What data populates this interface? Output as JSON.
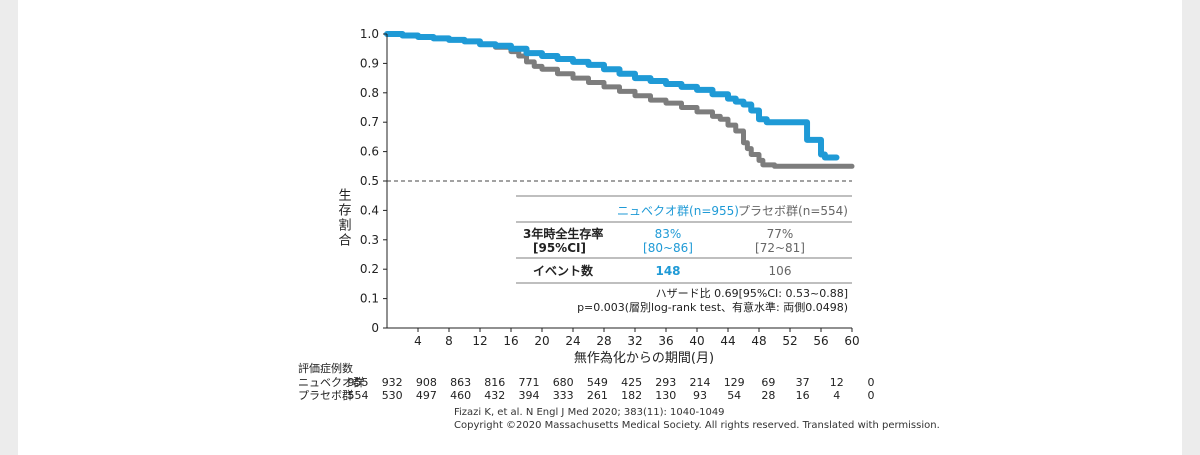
{
  "colors": {
    "nubeqa": "#1f9ad6",
    "placebo": "#7d7d7d",
    "axis": "#222222"
  },
  "chart_data": {
    "type": "line",
    "title": "",
    "xlabel": "無作為化からの期間(月)",
    "ylabel": "生存割合",
    "xlim": [
      0,
      60
    ],
    "ylim": [
      0,
      1.0
    ],
    "xticks": [
      4,
      8,
      12,
      16,
      20,
      24,
      28,
      32,
      36,
      40,
      44,
      48,
      52,
      56,
      60
    ],
    "yticks": [
      {
        "v": 0,
        "label": "0"
      },
      {
        "v": 0.1,
        "label": "0.1"
      },
      {
        "v": 0.2,
        "label": "0.2"
      },
      {
        "v": 0.3,
        "label": "0.3"
      },
      {
        "v": 0.4,
        "label": "0.4"
      },
      {
        "v": 0.5,
        "label": "0.5"
      },
      {
        "v": 0.6,
        "label": "0.6"
      },
      {
        "v": 0.7,
        "label": "0.7"
      },
      {
        "v": 0.8,
        "label": "0.8"
      },
      {
        "v": 0.9,
        "label": "0.9"
      },
      {
        "v": 1.0,
        "label": "1.0"
      }
    ],
    "reference_line": 0.5,
    "series": [
      {
        "name": "ニュベクオ群",
        "color": "#1f9ad6",
        "points": [
          [
            0,
            1.0
          ],
          [
            1,
            1.0
          ],
          [
            2,
            0.995
          ],
          [
            4,
            0.99
          ],
          [
            6,
            0.985
          ],
          [
            8,
            0.98
          ],
          [
            10,
            0.975
          ],
          [
            12,
            0.965
          ],
          [
            14,
            0.96
          ],
          [
            16,
            0.95
          ],
          [
            18,
            0.935
          ],
          [
            20,
            0.925
          ],
          [
            22,
            0.915
          ],
          [
            24,
            0.905
          ],
          [
            26,
            0.895
          ],
          [
            28,
            0.88
          ],
          [
            30,
            0.865
          ],
          [
            32,
            0.85
          ],
          [
            34,
            0.84
          ],
          [
            36,
            0.83
          ],
          [
            38,
            0.82
          ],
          [
            40,
            0.81
          ],
          [
            42,
            0.795
          ],
          [
            44,
            0.78
          ],
          [
            45,
            0.77
          ],
          [
            46,
            0.76
          ],
          [
            47,
            0.74
          ],
          [
            48,
            0.71
          ],
          [
            49,
            0.7
          ],
          [
            50,
            0.7
          ],
          [
            52,
            0.7
          ],
          [
            54,
            0.7
          ],
          [
            54.2,
            0.64
          ],
          [
            55,
            0.64
          ],
          [
            55.5,
            0.64
          ],
          [
            56,
            0.59
          ],
          [
            56.5,
            0.58
          ],
          [
            58,
            0.58
          ]
        ]
      },
      {
        "name": "プラセボ群",
        "color": "#7d7d7d",
        "points": [
          [
            0,
            1.0
          ],
          [
            1,
            1.0
          ],
          [
            2,
            0.995
          ],
          [
            4,
            0.99
          ],
          [
            6,
            0.985
          ],
          [
            8,
            0.98
          ],
          [
            10,
            0.975
          ],
          [
            12,
            0.965
          ],
          [
            14,
            0.955
          ],
          [
            16,
            0.94
          ],
          [
            17,
            0.925
          ],
          [
            18,
            0.905
          ],
          [
            19,
            0.89
          ],
          [
            20,
            0.88
          ],
          [
            22,
            0.865
          ],
          [
            24,
            0.85
          ],
          [
            26,
            0.835
          ],
          [
            28,
            0.82
          ],
          [
            30,
            0.805
          ],
          [
            32,
            0.79
          ],
          [
            34,
            0.775
          ],
          [
            36,
            0.765
          ],
          [
            38,
            0.75
          ],
          [
            40,
            0.735
          ],
          [
            42,
            0.72
          ],
          [
            43,
            0.71
          ],
          [
            44,
            0.69
          ],
          [
            45,
            0.67
          ],
          [
            46,
            0.63
          ],
          [
            46.5,
            0.61
          ],
          [
            47,
            0.59
          ],
          [
            48,
            0.57
          ],
          [
            48.5,
            0.555
          ],
          [
            50,
            0.55
          ],
          [
            52,
            0.55
          ],
          [
            54,
            0.55
          ],
          [
            56,
            0.55
          ],
          [
            58,
            0.55
          ],
          [
            60,
            0.55
          ]
        ]
      }
    ]
  },
  "table": {
    "head_nubeqa": "ニュベクオ群(n=955)",
    "head_placebo": "プラセボ群(n=554)",
    "row1_label_1": "3年時全生存率",
    "row1_label_2": "[95%CI]",
    "row1_nubeqa_1": "83%",
    "row1_nubeqa_2": "[80~86]",
    "row1_placebo_1": "77%",
    "row1_placebo_2": "[72~81]",
    "row2_label": "イベント数",
    "row2_nubeqa": "148",
    "row2_placebo": "106",
    "note1": "ハザード比 0.69[95%CI: 0.53~0.88]",
    "note2": "p=0.003(層別log-rank test、有意水準: 両側0.0498)"
  },
  "risk": {
    "title": "評価症例数",
    "months": [
      0,
      4,
      8,
      12,
      16,
      20,
      24,
      28,
      32,
      36,
      40,
      44,
      48,
      52,
      56,
      60
    ],
    "rows": [
      {
        "label": "ニュベクオ群",
        "values": [
          "955",
          "932",
          "908",
          "863",
          "816",
          "771",
          "680",
          "549",
          "425",
          "293",
          "214",
          "129",
          "69",
          "37",
          "12",
          "0"
        ]
      },
      {
        "label": "プラセボ群",
        "values": [
          "554",
          "530",
          "497",
          "460",
          "432",
          "394",
          "333",
          "261",
          "182",
          "130",
          "93",
          "54",
          "28",
          "16",
          "4",
          "0"
        ]
      }
    ]
  },
  "citation": {
    "line1": "Fizazi K, et al. N Engl J Med 2020; 383(11): 1040-1049",
    "line2": "Copyright ©2020 Massachusetts Medical Society. All rights reserved. Translated with permission."
  }
}
